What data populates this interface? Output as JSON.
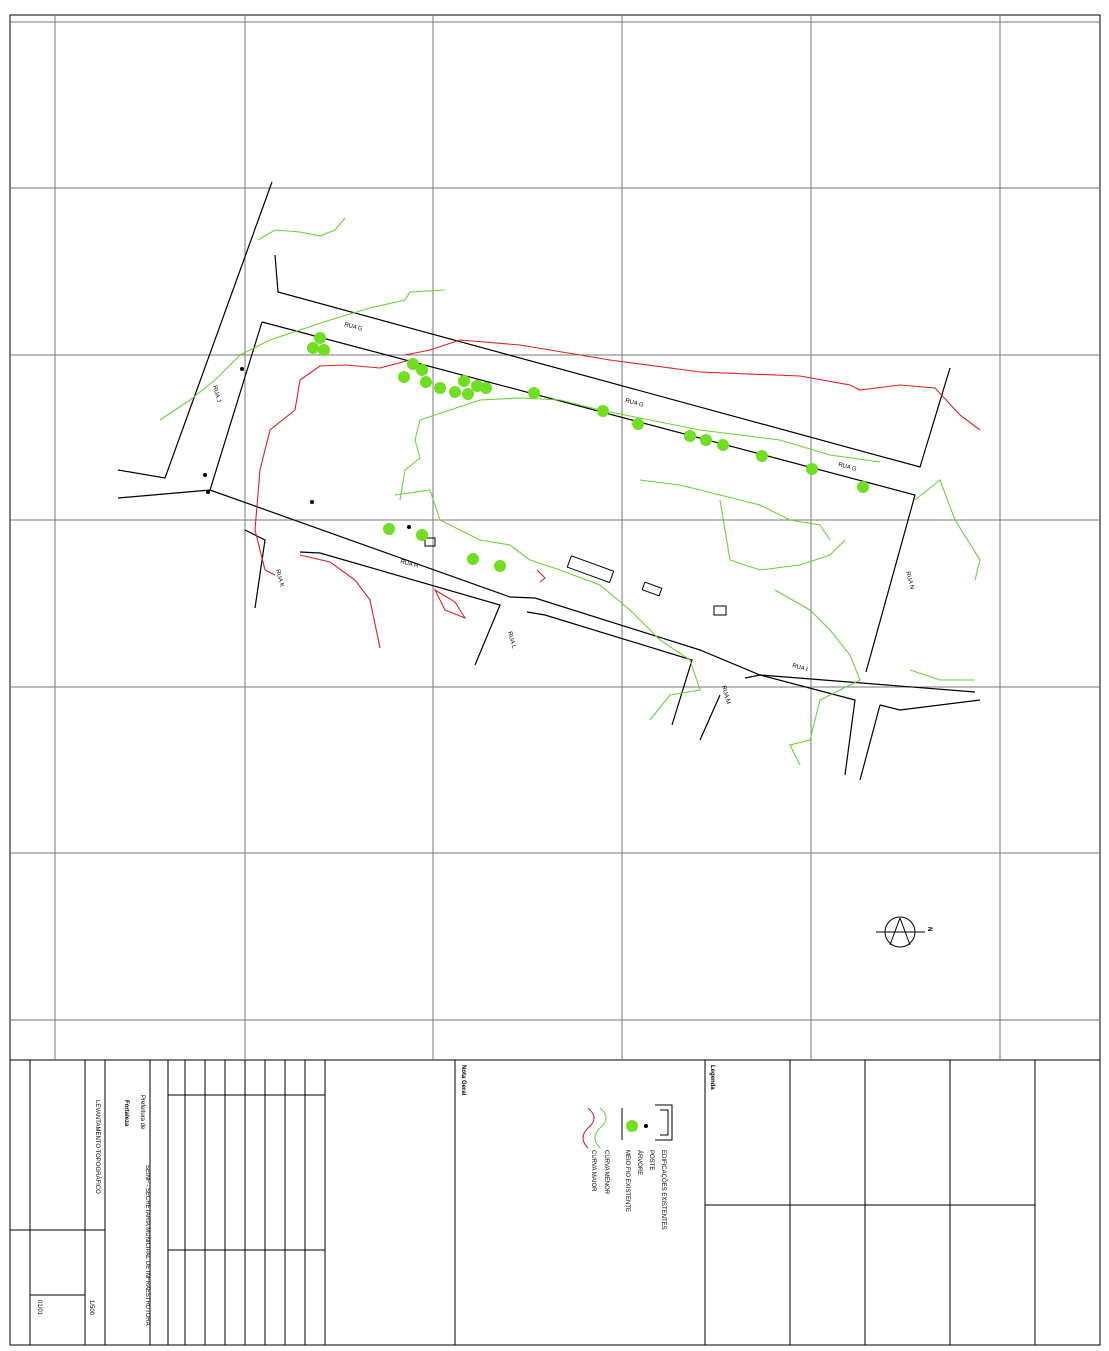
{
  "map": {
    "street_labels": [
      "RUA G",
      "RUA G",
      "RUA G",
      "RUA H",
      "RUA I",
      "RUA J",
      "RUA K",
      "RUA L",
      "RUA M",
      "RUA N"
    ],
    "north": "N"
  },
  "legend": {
    "title": "Legenda",
    "items": [
      "EDIFICAÇÕES EXISTENTES",
      "POSTE",
      "ÁRVORE",
      "MEIO FIO EXISTENTE",
      "CURVA MENOR",
      "CURVA MAIOR"
    ]
  },
  "title_block": {
    "city_prefix": "Prefeitura de",
    "city": "Fortaleza",
    "department": "SEINF - SECRETARIA MUNICIPAL DE INFRAESTRUTURA",
    "project": "LEVANTAMENTO TOPOGRÁFICO",
    "section": "Nota Geral",
    "scale": "1/500",
    "sheet": "01/01"
  }
}
